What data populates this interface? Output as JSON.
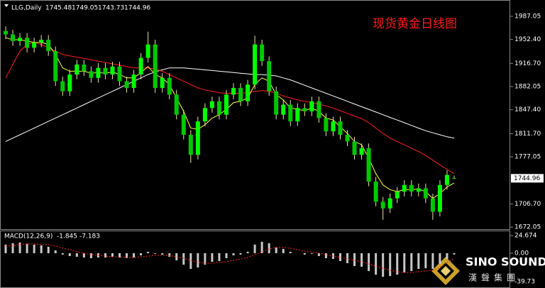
{
  "chart_data": [
    {
      "type": "candlestick",
      "title": "现货黄金日线图",
      "symbol": "LLG,Daily",
      "open": [
        1965,
        1960,
        1950,
        1955,
        1940,
        1948,
        1952,
        1935,
        1890,
        1875,
        1900,
        1915,
        1905,
        1895,
        1910,
        1900,
        1912,
        1890,
        1880,
        1900,
        1925,
        1945,
        1880,
        1895,
        1870,
        1840,
        1810,
        1780,
        1830,
        1850,
        1860,
        1840,
        1870,
        1880,
        1860,
        1885,
        1945,
        1920,
        1875,
        1840,
        1855,
        1830,
        1850,
        1845,
        1860,
        1835,
        1815,
        1830,
        1810,
        1800,
        1780,
        1790,
        1740,
        1710,
        1700,
        1715,
        1725,
        1735,
        1725,
        1730,
        1715,
        1695,
        1735,
        1745.48
      ],
      "high": [
        1972,
        1967,
        1962,
        1962,
        1955,
        1959,
        1959,
        1942,
        1897,
        1907,
        1922,
        1922,
        1912,
        1917,
        1917,
        1919,
        1919,
        1897,
        1907,
        1932,
        1964,
        1952,
        1902,
        1902,
        1877,
        1847,
        1817,
        1837,
        1857,
        1867,
        1867,
        1877,
        1887,
        1887,
        1892,
        1958,
        1952,
        1927,
        1882,
        1862,
        1862,
        1857,
        1857,
        1867,
        1867,
        1842,
        1837,
        1837,
        1817,
        1807,
        1797,
        1797,
        1747,
        1717,
        1722,
        1732,
        1742,
        1742,
        1737,
        1737,
        1722,
        1742,
        1757,
        1749.05
      ],
      "low": [
        1953,
        1943,
        1943,
        1933,
        1933,
        1941,
        1928,
        1883,
        1868,
        1868,
        1893,
        1898,
        1888,
        1888,
        1893,
        1893,
        1883,
        1873,
        1873,
        1893,
        1918,
        1873,
        1873,
        1863,
        1833,
        1803,
        1768,
        1773,
        1823,
        1843,
        1833,
        1833,
        1863,
        1853,
        1853,
        1878,
        1913,
        1868,
        1833,
        1833,
        1823,
        1823,
        1838,
        1838,
        1828,
        1808,
        1808,
        1803,
        1793,
        1773,
        1773,
        1733,
        1703,
        1683,
        1693,
        1708,
        1718,
        1718,
        1718,
        1708,
        1683,
        1688,
        1728,
        1743.73
      ],
      "close": [
        1960,
        1950,
        1955,
        1940,
        1948,
        1952,
        1935,
        1890,
        1875,
        1900,
        1915,
        1905,
        1895,
        1910,
        1900,
        1912,
        1890,
        1880,
        1900,
        1925,
        1945,
        1880,
        1895,
        1870,
        1840,
        1810,
        1780,
        1830,
        1850,
        1860,
        1840,
        1870,
        1880,
        1860,
        1885,
        1945,
        1920,
        1875,
        1840,
        1855,
        1830,
        1850,
        1845,
        1860,
        1835,
        1815,
        1830,
        1810,
        1800,
        1780,
        1790,
        1740,
        1710,
        1700,
        1715,
        1725,
        1735,
        1725,
        1730,
        1715,
        1695,
        1735,
        1750,
        1744.96
      ],
      "up_color": "#00ff00",
      "down_color": "#00c800",
      "wick_color": "#e8e8a0",
      "lines": [
        {
          "color": "#ffffff",
          "values": [
            1800,
            1805,
            1810,
            1815,
            1820,
            1825,
            1830,
            1835,
            1840,
            1845,
            1850,
            1855,
            1860,
            1865,
            1870,
            1875,
            1880,
            1885,
            1890,
            1895,
            1900,
            1904,
            1907,
            1910,
            1910,
            1910,
            1909,
            1908,
            1907,
            1906,
            1905,
            1904,
            1903,
            1902,
            1901,
            1900,
            1900,
            1899,
            1898,
            1895,
            1892,
            1888,
            1884,
            1880,
            1876,
            1872,
            1868,
            1864,
            1860,
            1856,
            1852,
            1848,
            1844,
            1840,
            1836,
            1832,
            1828,
            1824,
            1820,
            1816,
            1813,
            1810,
            1807,
            1805
          ]
        },
        {
          "color": "#ff2020",
          "values": [
            1895,
            1915,
            1935,
            1945,
            1948,
            1945,
            1940,
            1935,
            1930,
            1928,
            1926,
            1924,
            1922,
            1920,
            1918,
            1916,
            1914,
            1912,
            1910,
            1910,
            1910,
            1908,
            1905,
            1900,
            1895,
            1890,
            1885,
            1880,
            1877,
            1875,
            1873,
            1872,
            1872,
            1872,
            1873,
            1875,
            1876,
            1875,
            1872,
            1868,
            1865,
            1862,
            1860,
            1858,
            1856,
            1853,
            1850,
            1846,
            1842,
            1838,
            1834,
            1828,
            1820,
            1812,
            1805,
            1800,
            1795,
            1790,
            1785,
            1779,
            1772,
            1765,
            1758,
            1752
          ]
        },
        {
          "color": "#ffff40",
          "values": [
            1955,
            1952,
            1952,
            1950,
            1948,
            1948,
            1945,
            1930,
            1910,
            1905,
            1905,
            1905,
            1902,
            1903,
            1902,
            1904,
            1900,
            1895,
            1895,
            1903,
            1912,
            1900,
            1895,
            1885,
            1865,
            1845,
            1820,
            1818,
            1825,
            1835,
            1840,
            1848,
            1858,
            1860,
            1865,
            1885,
            1895,
            1890,
            1870,
            1862,
            1850,
            1848,
            1846,
            1850,
            1845,
            1835,
            1832,
            1822,
            1812,
            1800,
            1795,
            1775,
            1752,
            1735,
            1728,
            1725,
            1728,
            1728,
            1729,
            1725,
            1715,
            1722,
            1732,
            1738
          ]
        }
      ],
      "ylim": [
        1669,
        2011.4
      ],
      "yticks": [
        1987.05,
        {
          "value": 1952.4,
          "label": "1952.40"
        },
        {
          "value": 1916.7,
          "label": "1916.70"
        },
        1882.05,
        {
          "value": 1847.4,
          "label": "1847.40"
        },
        {
          "value": 1811.7,
          "label": "1811.70"
        },
        1777.05,
        {
          "value": 1706.7,
          "label": "1706.70"
        },
        1672.05
      ]
    },
    {
      "type": "macd",
      "title": "MACD(12,26,9)",
      "histogram": {
        "color": "#c8c8c8",
        "values": [
          12,
          14,
          15,
          13,
          12,
          11,
          9,
          4,
          -2,
          -4,
          -5,
          -6,
          -7,
          -6,
          -6,
          -5,
          -6,
          -7,
          -6,
          -3,
          2,
          -1,
          -2,
          -5,
          -10,
          -16,
          -22,
          -20,
          -16,
          -12,
          -11,
          -7,
          -3,
          -2,
          2,
          12,
          16,
          14,
          8,
          6,
          2,
          0,
          -2,
          -1,
          -4,
          -7,
          -8,
          -11,
          -14,
          -18,
          -19,
          -25,
          -30,
          -33,
          -32,
          -30,
          -27,
          -25,
          -22,
          -21,
          -22,
          -15,
          -8,
          -1.845
        ]
      },
      "signal": {
        "color": "#ff2020",
        "values": [
          10,
          11,
          12,
          13,
          13,
          12,
          12,
          10,
          7,
          5,
          2,
          0,
          -2,
          -3,
          -4,
          -5,
          -5,
          -6,
          -6,
          -5,
          -4,
          -3,
          -3,
          -3,
          -5,
          -7,
          -10,
          -13,
          -14,
          -14,
          -13,
          -12,
          -10,
          -8,
          -6,
          -2,
          2,
          6,
          8,
          8,
          7,
          5,
          3,
          2,
          0,
          -2,
          -4,
          -6,
          -8,
          -10,
          -12,
          -15,
          -18,
          -21,
          -24,
          -26,
          -27,
          -27,
          -26,
          -25,
          -24,
          -20,
          -13,
          -7.183
        ]
      },
      "ylim": [
        -46.7,
        30.7
      ],
      "yticks": [
        24.674,
        {
          "value": 0,
          "label": "0.00"
        },
        -39.73
      ]
    }
  ],
  "watermark": {
    "name": "SINO SOUND",
    "subtitle": "漢聲集團"
  }
}
